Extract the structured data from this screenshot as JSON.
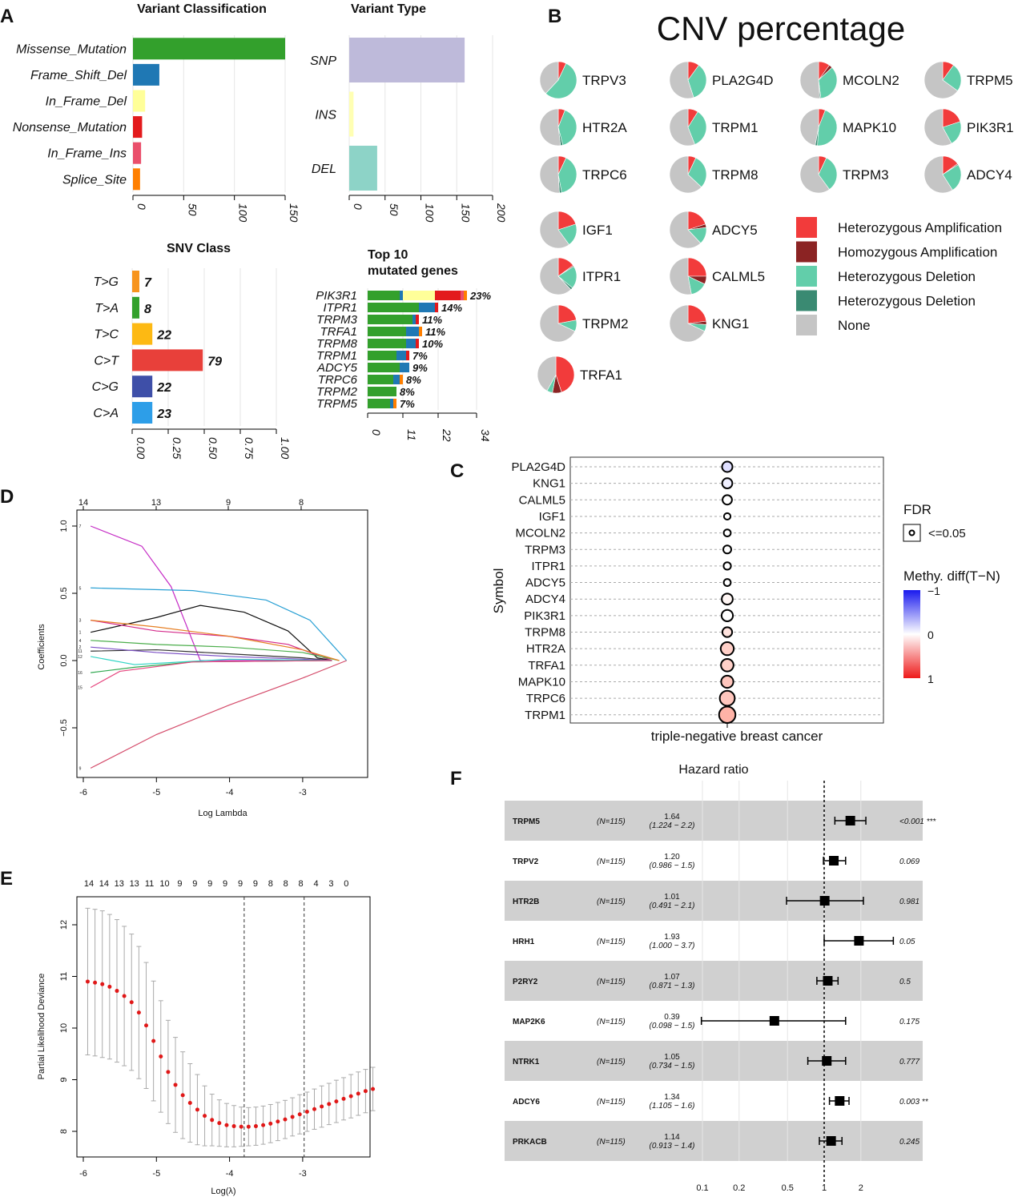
{
  "chart_data": [
    {
      "panel": "A",
      "type": "bar",
      "orientation": "horizontal",
      "title": "Variant Classification",
      "categories": [
        "Missense_Mutation",
        "Frame_Shift_Del",
        "In_Frame_Del",
        "Nonsense_Mutation",
        "In_Frame_Ins",
        "Splice_Site"
      ],
      "values": [
        150,
        26,
        12,
        9,
        8,
        7
      ],
      "colors": [
        "#33a02c",
        "#1f78b4",
        "#ffff99",
        "#e31a1c",
        "#ea4f6b",
        "#ff7f00"
      ],
      "xticks": [
        0,
        50,
        100,
        150
      ],
      "xlim": [
        0,
        150
      ]
    },
    {
      "panel": "A",
      "type": "bar",
      "orientation": "horizontal",
      "title": "Variant Type",
      "categories": [
        "SNP",
        "INS",
        "DEL"
      ],
      "values": [
        161,
        6,
        39
      ],
      "colors": [
        "#bebada",
        "#ffffb3",
        "#8dd3c7"
      ],
      "xticks": [
        0,
        50,
        100,
        150,
        200
      ],
      "xlim": [
        0,
        200
      ]
    },
    {
      "panel": "A",
      "type": "bar",
      "orientation": "horizontal",
      "title": "SNV Class",
      "categories": [
        "T>G",
        "T>A",
        "T>C",
        "C>T",
        "C>G",
        "C>A"
      ],
      "values": [
        0.05,
        0.05,
        0.14,
        0.49,
        0.14,
        0.14
      ],
      "labels": [
        "7",
        "8",
        "22",
        "79",
        "22",
        "23"
      ],
      "colors": [
        "#f7941d",
        "#33a02c",
        "#fdb913",
        "#e8403a",
        "#3e4fa8",
        "#2d9ee8"
      ],
      "xticks": [
        0.0,
        0.25,
        0.5,
        0.75,
        1.0
      ],
      "tick_labels": [
        "0.00",
        "0.25",
        "0.50",
        "0.75",
        "1.00"
      ],
      "xlim": [
        0,
        1
      ]
    },
    {
      "panel": "A",
      "type": "bar",
      "stacked": true,
      "orientation": "horizontal",
      "title": [
        "Top 10",
        "mutated genes"
      ],
      "genes": [
        "PIK3R1",
        "ITPR1",
        "TRPM3",
        "TRFA1",
        "TRPM8",
        "TRPM1",
        "ADCY5",
        "TRPC6",
        "TRPM2",
        "TRPM5"
      ],
      "percent_labels": [
        "23%",
        "14%",
        "11%",
        "11%",
        "10%",
        "7%",
        "9%",
        "8%",
        "8%",
        "7%"
      ],
      "segments": [
        [
          10,
          1,
          10,
          8,
          1,
          1
        ],
        [
          16,
          5,
          0,
          1,
          0,
          0
        ],
        [
          14,
          1,
          0,
          1,
          0,
          0
        ],
        [
          12,
          4,
          0,
          0,
          0,
          1
        ],
        [
          12,
          3,
          0,
          1,
          0,
          0
        ],
        [
          9,
          3,
          0,
          1,
          0,
          0
        ],
        [
          10,
          3,
          0,
          0,
          0,
          0
        ],
        [
          8,
          2,
          0,
          0,
          0,
          1
        ],
        [
          9,
          0,
          0,
          0,
          0,
          0
        ],
        [
          7,
          1,
          0,
          0,
          0,
          1
        ]
      ],
      "segment_colors": [
        "#33a02c",
        "#1f78b4",
        "#ffff99",
        "#e31a1c",
        "#ea4f6b",
        "#ff7f00"
      ],
      "xticks": [
        0,
        11,
        22,
        34
      ],
      "xlim": [
        0,
        34
      ]
    },
    {
      "panel": "B",
      "type": "pie",
      "title": "CNV percentage",
      "order": [
        "het_amp",
        "hom_amp",
        "het_del",
        "hom_del",
        "none"
      ],
      "colors": [
        "#f23b3b",
        "#8b2323",
        "#62ceaa",
        "#3a8a72",
        "#c5c5c5"
      ],
      "legend": [
        "Heterozygous Amplification",
        "Homozygous Amplification",
        "Heterozygous Deletion",
        "Heterozygous Deletion",
        "None"
      ],
      "genes": [
        {
          "name": "TRPV3",
          "values": [
            0.07,
            0,
            0.55,
            0,
            0.38
          ]
        },
        {
          "name": "PLA2G4D",
          "values": [
            0.1,
            0,
            0.35,
            0,
            0.55
          ]
        },
        {
          "name": "MCOLN2",
          "values": [
            0.1,
            0.03,
            0.35,
            0.01,
            0.51
          ]
        },
        {
          "name": "TRPM5",
          "values": [
            0.1,
            0,
            0.25,
            0,
            0.65
          ]
        },
        {
          "name": "HTR2A",
          "values": [
            0.06,
            0,
            0.4,
            0.02,
            0.52
          ]
        },
        {
          "name": "TRPM1",
          "values": [
            0.09,
            0,
            0.35,
            0,
            0.56
          ]
        },
        {
          "name": "MAPK10",
          "values": [
            0.06,
            0,
            0.45,
            0.02,
            0.47
          ]
        },
        {
          "name": "PIK3R1",
          "values": [
            0.2,
            0,
            0.22,
            0,
            0.58
          ]
        },
        {
          "name": "TRPC6",
          "values": [
            0.07,
            0,
            0.4,
            0.02,
            0.51
          ]
        },
        {
          "name": "TRPM8",
          "values": [
            0.07,
            0,
            0.3,
            0,
            0.63
          ]
        },
        {
          "name": "TRPM3",
          "values": [
            0.07,
            0,
            0.33,
            0,
            0.6
          ]
        },
        {
          "name": "ADCY4",
          "values": [
            0.15,
            0.01,
            0.25,
            0,
            0.59
          ]
        },
        {
          "name": "IGF1",
          "values": [
            0.2,
            0,
            0.2,
            0,
            0.6
          ]
        },
        {
          "name": "ADCY5",
          "values": [
            0.2,
            0.03,
            0.15,
            0,
            0.62
          ]
        },
        {
          "name": "ITPR1",
          "values": [
            0.15,
            0.01,
            0.2,
            0.02,
            0.62
          ]
        },
        {
          "name": "CALML5",
          "values": [
            0.25,
            0.07,
            0.15,
            0,
            0.53
          ]
        },
        {
          "name": "TRPM2",
          "values": [
            0.22,
            0,
            0.1,
            0,
            0.68
          ]
        },
        {
          "name": "KNG1",
          "values": [
            0.23,
            0.03,
            0.06,
            0,
            0.68
          ]
        },
        {
          "name": "TRFA1",
          "values": [
            0.45,
            0.08,
            0.05,
            0,
            0.42
          ]
        }
      ]
    },
    {
      "panel": "C",
      "type": "scatter",
      "subtype": "bubble",
      "xlabel": "triple-negative breast cancer",
      "ylabel": "Symbol",
      "symbols": [
        "PLA2G4D",
        "KNG1",
        "CALML5",
        "IGF1",
        "MCOLN2",
        "TRPM3",
        "ITPR1",
        "ADCY5",
        "ADCY4",
        "PIK3R1",
        "TRPM8",
        "HTR2A",
        "TRFA1",
        "MAPK10",
        "TRPC6",
        "TRPM1"
      ],
      "size_rank": [
        0.4,
        0.38,
        0.32,
        0.08,
        0.12,
        0.2,
        0.15,
        0.12,
        0.45,
        0.48,
        0.35,
        0.62,
        0.58,
        0.55,
        0.78,
        0.9
      ],
      "methy_diff": [
        -0.2,
        -0.1,
        0,
        0,
        0,
        0,
        0,
        0,
        0.05,
        0,
        0.15,
        0.25,
        0.25,
        0.3,
        0.3,
        0.4
      ],
      "legend_fdr_title": "FDR",
      "legend_fdr_label": "<=0.05",
      "legend_color_title": "Methy. diff(T−N)",
      "color_ticks": [
        "−1",
        "0",
        "1"
      ]
    },
    {
      "panel": "D",
      "type": "line",
      "xlabel": "Log Lambda",
      "ylabel": "Coefficients",
      "xticks": [
        "-6",
        "-5",
        "-4",
        "-3"
      ],
      "yticks": [
        "0.0",
        "0.5",
        "1.0"
      ],
      "ytick_neg": "−0.5",
      "top_ticks": [
        "14",
        "13",
        "9",
        "8"
      ],
      "line_labels": [
        "7",
        "5",
        "3",
        "1",
        "4",
        "2",
        "11",
        "12",
        "16",
        "15",
        "9"
      ]
    },
    {
      "panel": "E",
      "type": "line",
      "xlabel": "Log(λ)",
      "ylabel": "Partial Likelihood Deviance",
      "xticks": [
        "-6",
        "-5",
        "-4",
        "-3"
      ],
      "yticks": [
        "8",
        "9",
        "10",
        "11",
        "12"
      ],
      "top_ticks": [
        "14",
        "14",
        "13",
        "13",
        "11",
        "10",
        "9",
        "9",
        "9",
        "9",
        "9",
        "9",
        "8",
        "8",
        "8",
        "4",
        "3",
        "0"
      ],
      "x": [
        -5.94,
        -5.84,
        -5.74,
        -5.64,
        -5.54,
        -5.44,
        -5.34,
        -5.24,
        -5.14,
        -5.04,
        -4.94,
        -4.84,
        -4.74,
        -4.64,
        -4.54,
        -4.44,
        -4.34,
        -4.24,
        -4.14,
        -4.04,
        -3.94,
        -3.84,
        -3.74,
        -3.64,
        -3.54,
        -3.44,
        -3.34,
        -3.24,
        -3.14,
        -3.04,
        -2.94,
        -2.84,
        -2.74,
        -2.64,
        -2.54,
        -2.44,
        -2.34,
        -2.24,
        -2.14,
        -2.04
      ],
      "y": [
        10.9,
        10.88,
        10.85,
        10.8,
        10.72,
        10.62,
        10.5,
        10.3,
        10.05,
        9.75,
        9.45,
        9.15,
        8.9,
        8.7,
        8.55,
        8.42,
        8.3,
        8.22,
        8.16,
        8.12,
        8.1,
        8.09,
        8.09,
        8.1,
        8.12,
        8.15,
        8.19,
        8.23,
        8.28,
        8.33,
        8.38,
        8.43,
        8.48,
        8.53,
        8.58,
        8.63,
        8.68,
        8.73,
        8.78,
        8.82
      ],
      "err": [
        1.42,
        1.42,
        1.42,
        1.4,
        1.38,
        1.35,
        1.32,
        1.28,
        1.22,
        1.16,
        1.08,
        1.0,
        0.92,
        0.84,
        0.76,
        0.68,
        0.58,
        0.5,
        0.45,
        0.42,
        0.4,
        0.38,
        0.37,
        0.37,
        0.37,
        0.37,
        0.37,
        0.37,
        0.37,
        0.38,
        0.38,
        0.39,
        0.4,
        0.4,
        0.41,
        0.41,
        0.42,
        0.42,
        0.42,
        0.42
      ],
      "vlines": [
        -3.8,
        -2.98
      ]
    },
    {
      "panel": "F",
      "type": "forest",
      "title": "Hazard ratio",
      "xticks": [
        "0.1",
        "0.2",
        "0.5",
        "1",
        "2"
      ],
      "rows": [
        {
          "gene": "TRPM5",
          "n": "(N=115)",
          "hr": "1.64",
          "ci": "(1.224 − 2.2)",
          "p": "<0.001 ***",
          "hr_v": 1.64,
          "lo": 1.224,
          "hi": 2.2,
          "highlight": true
        },
        {
          "gene": "TRPV2",
          "n": "(N=115)",
          "hr": "1.20",
          "ci": "(0.986 − 1.5)",
          "p": "0.069",
          "hr_v": 1.2,
          "lo": 0.986,
          "hi": 1.5
        },
        {
          "gene": "HTR2B",
          "n": "(N=115)",
          "hr": "1.01",
          "ci": "(0.491 − 2.1)",
          "p": "0.981",
          "hr_v": 1.01,
          "lo": 0.491,
          "hi": 2.1
        },
        {
          "gene": "HRH1",
          "n": "(N=115)",
          "hr": "1.93",
          "ci": "(1.000 − 3.7)",
          "p": "0.05",
          "hr_v": 1.93,
          "lo": 1.0,
          "hi": 3.7
        },
        {
          "gene": "P2RY2",
          "n": "(N=115)",
          "hr": "1.07",
          "ci": "(0.871 − 1.3)",
          "p": "0.5",
          "hr_v": 1.07,
          "lo": 0.871,
          "hi": 1.3
        },
        {
          "gene": "MAP2K6",
          "n": "(N=115)",
          "hr": "0.39",
          "ci": "(0.098 − 1.5)",
          "p": "0.175",
          "hr_v": 0.39,
          "lo": 0.098,
          "hi": 1.5
        },
        {
          "gene": "NTRK1",
          "n": "(N=115)",
          "hr": "1.05",
          "ci": "(0.734 − 1.5)",
          "p": "0.777",
          "hr_v": 1.05,
          "lo": 0.734,
          "hi": 1.5
        },
        {
          "gene": "ADCY6",
          "n": "(N=115)",
          "hr": "1.34",
          "ci": "(1.105 − 1.6)",
          "p": "0.003 **",
          "hr_v": 1.34,
          "lo": 1.105,
          "hi": 1.6
        },
        {
          "gene": "PRKACB",
          "n": "(N=115)",
          "hr": "1.14",
          "ci": "(0.913 − 1.4)",
          "p": "0.245",
          "hr_v": 1.14,
          "lo": 0.913,
          "hi": 1.4
        }
      ]
    }
  ],
  "panel_labels": [
    "A",
    "B",
    "C",
    "D",
    "E",
    "F"
  ]
}
